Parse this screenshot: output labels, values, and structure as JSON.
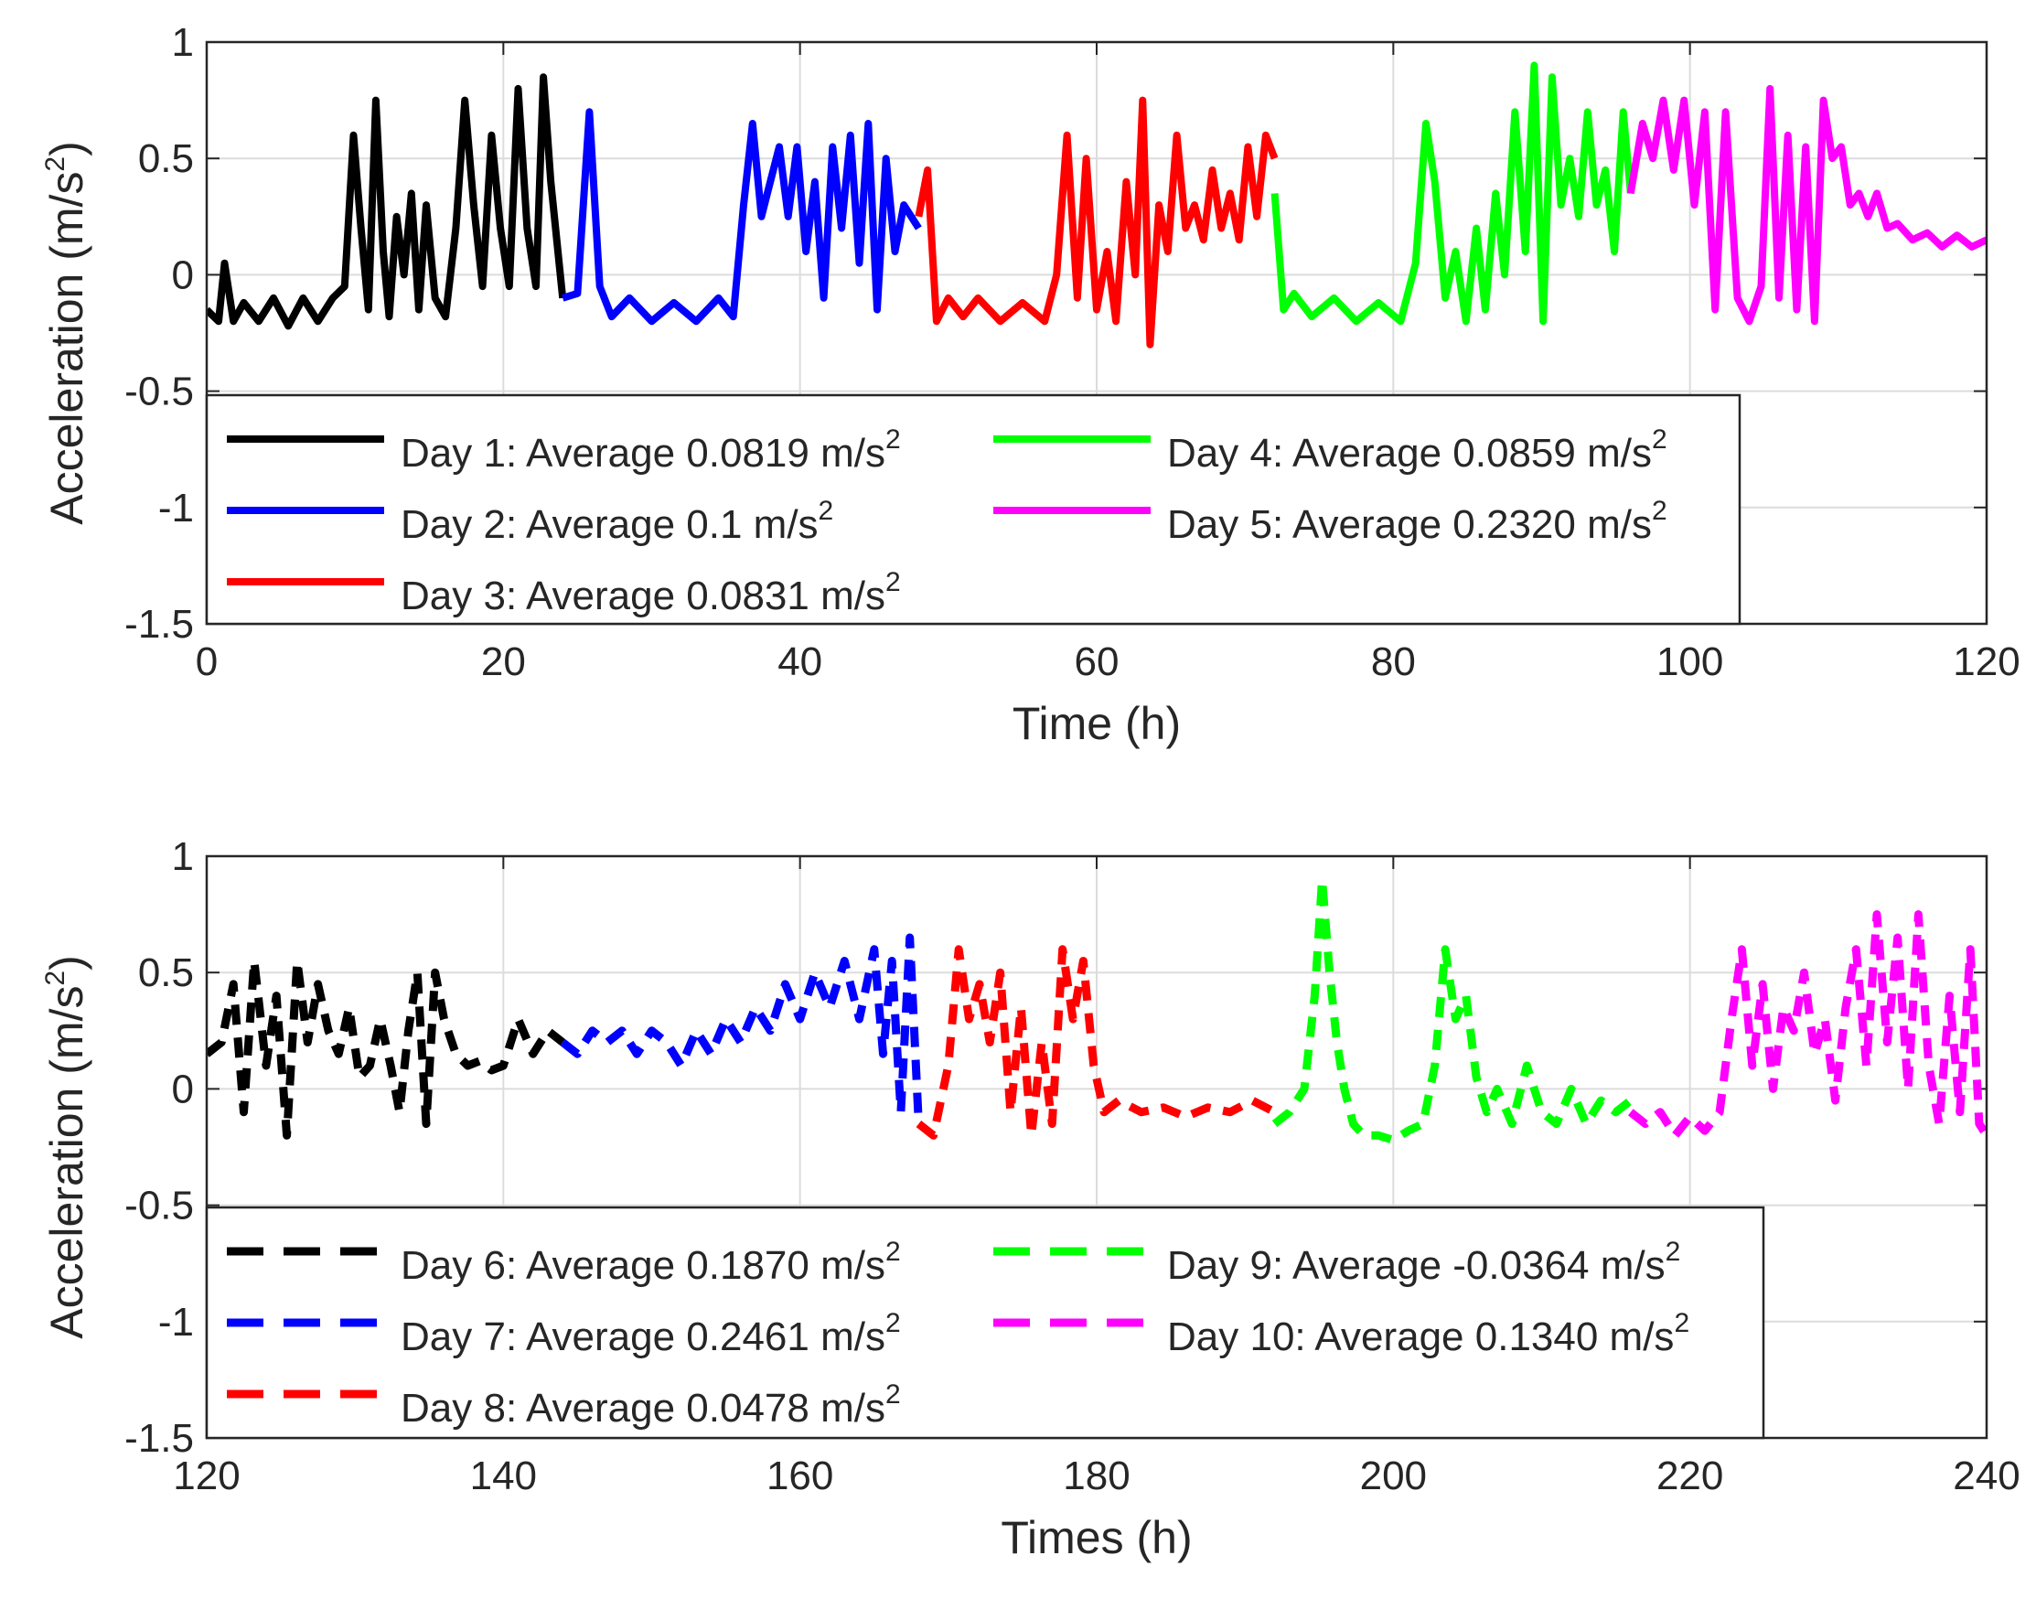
{
  "chart_data": [
    {
      "type": "line",
      "line_style": "solid",
      "xlabel": "Time (h)",
      "ylabel": "Acceleration (m/s",
      "ylabel_sup": "2",
      "ylabel_tail": ")",
      "xlim": [
        0,
        120
      ],
      "ylim": [
        -1.5,
        1
      ],
      "xticks": [
        "0",
        "20",
        "40",
        "60",
        "80",
        "100",
        "120"
      ],
      "yticks": [
        "1",
        "0.5",
        "0",
        "-0.5",
        "-1",
        "-1.5"
      ],
      "grid": true,
      "legend_placement": "lower-left",
      "series": [
        {
          "name": "Day 1: Average 0.0819 m/s",
          "sup": "2",
          "color": "#000000",
          "x": [
            0,
            0.8,
            1.2,
            1.8,
            2.5,
            3.5,
            4.5,
            5.5,
            6.5,
            7.5,
            8.5,
            9.3,
            9.9,
            10.4,
            10.9,
            11.4,
            11.9,
            12.3,
            12.8,
            13.3,
            13.8,
            14.3,
            14.8,
            15.4,
            16.1,
            16.8,
            17.4,
            18,
            18.6,
            19.2,
            19.8,
            20.4,
            21,
            21.6,
            22.2,
            22.7,
            23.2,
            24
          ],
          "y": [
            -0.15,
            -0.2,
            0.05,
            -0.2,
            -0.12,
            -0.2,
            -0.1,
            -0.22,
            -0.1,
            -0.2,
            -0.1,
            -0.05,
            0.6,
            0.2,
            -0.15,
            0.75,
            0.1,
            -0.18,
            0.25,
            0.0,
            0.35,
            -0.15,
            0.3,
            -0.1,
            -0.18,
            0.2,
            0.75,
            0.3,
            -0.05,
            0.6,
            0.2,
            -0.05,
            0.8,
            0.2,
            -0.05,
            0.85,
            0.4,
            -0.1
          ]
        },
        {
          "name": "Day 2: Average 0.1 m/s",
          "sup": "2",
          "color": "#0000ff",
          "x": [
            24,
            25,
            25.8,
            26.5,
            27.3,
            28.5,
            30,
            31.5,
            33,
            34.5,
            35.5,
            36.2,
            36.8,
            37.4,
            38,
            38.6,
            39.2,
            39.8,
            40.4,
            41,
            41.6,
            42.2,
            42.8,
            43.4,
            44,
            44.6,
            45.2,
            45.8,
            46.4,
            47,
            48
          ],
          "y": [
            -0.1,
            -0.08,
            0.7,
            -0.05,
            -0.18,
            -0.1,
            -0.2,
            -0.12,
            -0.2,
            -0.1,
            -0.18,
            0.3,
            0.65,
            0.25,
            0.4,
            0.55,
            0.25,
            0.55,
            0.1,
            0.4,
            -0.1,
            0.55,
            0.2,
            0.6,
            0.05,
            0.65,
            -0.15,
            0.5,
            0.1,
            0.3,
            0.2
          ]
        },
        {
          "name": "Day 3: Average 0.0831 m/s",
          "sup": "2",
          "color": "#ff0000",
          "x": [
            48,
            48.6,
            49.2,
            50,
            51,
            52,
            53.5,
            55,
            56.5,
            57.3,
            58,
            58.7,
            59.3,
            60,
            60.7,
            61.3,
            62,
            62.6,
            63.1,
            63.6,
            64.2,
            64.8,
            65.4,
            66,
            66.6,
            67.2,
            67.8,
            68.4,
            69,
            69.6,
            70.2,
            70.8,
            71.4,
            72
          ],
          "y": [
            0.25,
            0.45,
            -0.2,
            -0.1,
            -0.18,
            -0.1,
            -0.2,
            -0.12,
            -0.2,
            0.0,
            0.6,
            -0.1,
            0.5,
            -0.15,
            0.1,
            -0.2,
            0.4,
            0.0,
            0.75,
            -0.3,
            0.3,
            0.1,
            0.6,
            0.2,
            0.3,
            0.15,
            0.45,
            0.2,
            0.35,
            0.15,
            0.55,
            0.25,
            0.6,
            0.5
          ]
        },
        {
          "name": "Day 4: Average 0.0859 m/s",
          "sup": "2",
          "color": "#00ff00",
          "x": [
            72,
            72.6,
            73.3,
            74.5,
            76,
            77.5,
            79,
            80.5,
            81.5,
            82.2,
            82.8,
            83.5,
            84.2,
            84.9,
            85.6,
            86.2,
            86.9,
            87.5,
            88.2,
            88.9,
            89.5,
            90.1,
            90.7,
            91.3,
            91.9,
            92.5,
            93.1,
            93.7,
            94.3,
            94.9,
            95.5,
            96
          ],
          "y": [
            0.35,
            -0.15,
            -0.08,
            -0.18,
            -0.1,
            -0.2,
            -0.12,
            -0.2,
            0.05,
            0.65,
            0.4,
            -0.1,
            0.1,
            -0.2,
            0.2,
            -0.15,
            0.35,
            0.0,
            0.7,
            0.1,
            0.9,
            -0.2,
            0.85,
            0.3,
            0.5,
            0.25,
            0.7,
            0.3,
            0.45,
            0.1,
            0.7,
            0.35
          ]
        },
        {
          "name": "Day 5: Average 0.2320 m/s",
          "sup": "2",
          "color": "#ff00ff",
          "x": [
            96,
            96.8,
            97.5,
            98.2,
            98.9,
            99.6,
            100.3,
            101,
            101.7,
            102.4,
            103.2,
            104,
            104.8,
            105.4,
            106,
            106.6,
            107.2,
            107.8,
            108.4,
            109,
            109.6,
            110.2,
            110.8,
            111.4,
            112,
            112.6,
            113.3,
            114,
            115,
            116,
            117,
            118,
            119,
            120
          ],
          "y": [
            0.35,
            0.65,
            0.5,
            0.75,
            0.45,
            0.75,
            0.3,
            0.7,
            -0.15,
            0.7,
            -0.1,
            -0.2,
            -0.05,
            0.8,
            -0.1,
            0.6,
            -0.15,
            0.55,
            -0.2,
            0.75,
            0.5,
            0.55,
            0.3,
            0.35,
            0.25,
            0.35,
            0.2,
            0.22,
            0.15,
            0.18,
            0.12,
            0.17,
            0.12,
            0.15
          ]
        }
      ]
    },
    {
      "type": "line",
      "line_style": "dashed",
      "xlabel": "Times (h)",
      "ylabel": "Acceleration (m/s",
      "ylabel_sup": "2",
      "ylabel_tail": ")",
      "xlim": [
        120,
        240
      ],
      "ylim": [
        -1.5,
        1
      ],
      "xticks": [
        "120",
        "140",
        "160",
        "180",
        "200",
        "220",
        "240"
      ],
      "yticks": [
        "1",
        "0.5",
        "0",
        "-0.5",
        "-1",
        "-1.5"
      ],
      "grid": true,
      "legend_placement": "lower-left",
      "series": [
        {
          "name": "Day 6: Average 0.1870 m/s",
          "sup": "2",
          "color": "#000000",
          "x": [
            120,
            121,
            121.8,
            122.5,
            123.2,
            124,
            124.7,
            125.4,
            126.1,
            126.8,
            127.5,
            128.2,
            128.9,
            129.6,
            130.3,
            131,
            131.7,
            132.4,
            133,
            133.6,
            134.2,
            134.8,
            135.4,
            136,
            136.8,
            137.6,
            138.4,
            139.2,
            140,
            141,
            142,
            143,
            144
          ],
          "y": [
            0.15,
            0.2,
            0.45,
            -0.1,
            0.55,
            0.1,
            0.4,
            -0.2,
            0.55,
            0.2,
            0.45,
            0.25,
            0.15,
            0.35,
            0.05,
            0.1,
            0.3,
            0.1,
            -0.1,
            0.25,
            0.5,
            -0.15,
            0.5,
            0.3,
            0.15,
            0.1,
            0.12,
            0.08,
            0.1,
            0.3,
            0.15,
            0.25,
            0.2
          ]
        },
        {
          "name": "Day 7: Average 0.2461 m/s",
          "sup": "2",
          "color": "#0000ff",
          "x": [
            144,
            145,
            146,
            147,
            148,
            149,
            150,
            151,
            152,
            153,
            154,
            155,
            156,
            157,
            158,
            159,
            160,
            161,
            162,
            163,
            164,
            165,
            165.6,
            166.2,
            166.8,
            167.4,
            168
          ],
          "y": [
            0.2,
            0.15,
            0.25,
            0.2,
            0.25,
            0.15,
            0.25,
            0.2,
            0.1,
            0.25,
            0.15,
            0.3,
            0.2,
            0.35,
            0.25,
            0.45,
            0.3,
            0.5,
            0.35,
            0.55,
            0.3,
            0.6,
            0.15,
            0.55,
            -0.1,
            0.65,
            -0.15
          ]
        },
        {
          "name": "Day 8: Average 0.0478 m/s",
          "sup": "2",
          "color": "#ff0000",
          "x": [
            168,
            169,
            170,
            170.7,
            171.4,
            172.1,
            172.8,
            173.5,
            174.2,
            174.9,
            175.6,
            176.3,
            177,
            177.7,
            178.4,
            179.1,
            179.8,
            180.5,
            181.5,
            183,
            184.5,
            186,
            187.5,
            189,
            190.5,
            192
          ],
          "y": [
            -0.15,
            -0.2,
            0.1,
            0.6,
            0.3,
            0.45,
            0.2,
            0.5,
            -0.1,
            0.35,
            -0.2,
            0.2,
            -0.15,
            0.6,
            0.3,
            0.55,
            0.1,
            -0.1,
            -0.05,
            -0.1,
            -0.08,
            -0.12,
            -0.08,
            -0.1,
            -0.05,
            -0.1
          ]
        },
        {
          "name": "Day 9: Average -0.0364 m/s",
          "sup": "2",
          "color": "#00ff00",
          "x": [
            192,
            193,
            194,
            194.7,
            195.2,
            195.7,
            196.2,
            196.7,
            197.3,
            198,
            199,
            200,
            201,
            202,
            202.8,
            203.5,
            204.2,
            204.9,
            205.6,
            206.3,
            207,
            208,
            209,
            210,
            211,
            212,
            213,
            214,
            215,
            216
          ],
          "y": [
            -0.15,
            -0.1,
            0.0,
            0.4,
            0.9,
            0.5,
            0.2,
            0.0,
            -0.15,
            -0.2,
            -0.2,
            -0.22,
            -0.18,
            -0.15,
            0.1,
            0.6,
            0.3,
            0.4,
            0.05,
            -0.1,
            0.0,
            -0.15,
            0.1,
            -0.1,
            -0.15,
            0.0,
            -0.15,
            -0.05,
            -0.1,
            -0.05
          ]
        },
        {
          "name": "Day 10: Average 0.1340 m/s",
          "sup": "2",
          "color": "#ff00ff",
          "x": [
            216,
            217,
            218,
            219,
            220,
            221,
            222,
            222.8,
            223.5,
            224.2,
            224.9,
            225.6,
            226.3,
            227,
            227.7,
            228.4,
            229.1,
            229.8,
            230.5,
            231.2,
            231.9,
            232.6,
            233.3,
            234,
            234.7,
            235.4,
            236.1,
            236.8,
            237.5,
            238.2,
            238.9,
            239.5,
            240
          ],
          "y": [
            -0.1,
            -0.15,
            -0.1,
            -0.2,
            -0.12,
            -0.18,
            -0.1,
            0.3,
            0.6,
            0.1,
            0.45,
            0.0,
            0.35,
            0.25,
            0.5,
            0.15,
            0.3,
            -0.05,
            0.35,
            0.6,
            0.1,
            0.75,
            0.2,
            0.65,
            0.0,
            0.75,
            0.1,
            -0.15,
            0.4,
            -0.1,
            0.6,
            -0.15,
            -0.2
          ]
        }
      ]
    }
  ]
}
